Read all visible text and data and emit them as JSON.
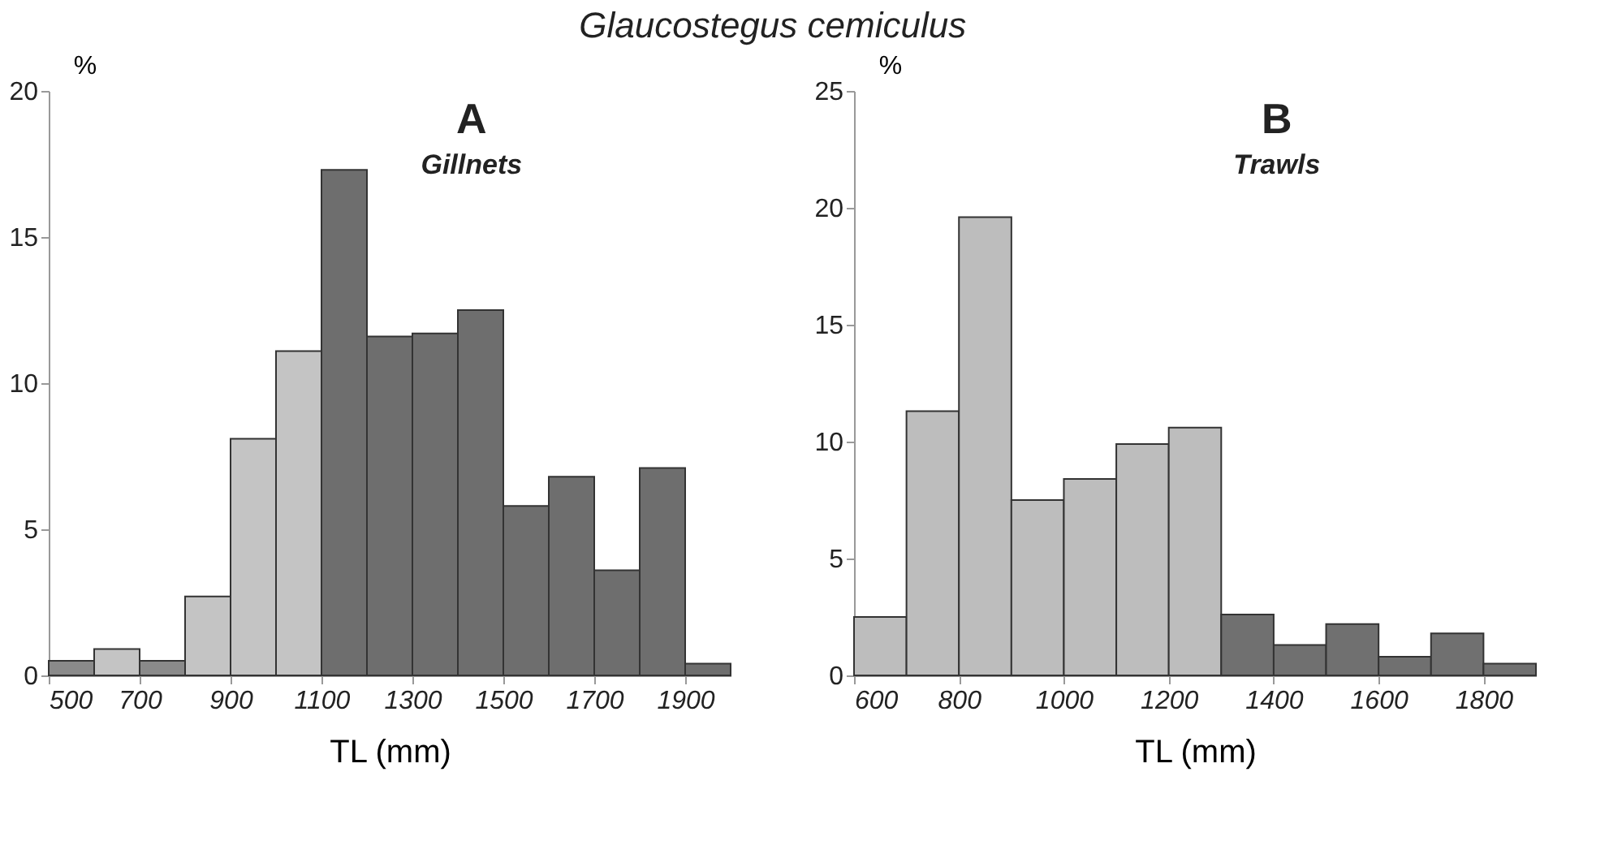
{
  "chart_data": [
    {
      "type": "histogram",
      "title": "A",
      "subtitle": "Gillnets",
      "annotations": [
        "Glaucostegus cemiculus"
      ],
      "xlabel": "TL (mm)",
      "ylabel": "%",
      "bins": [
        500,
        600,
        700,
        800,
        900,
        1000,
        1100,
        1200,
        1300,
        1400,
        1500,
        1600,
        1700,
        1800,
        1900,
        2000
      ],
      "values": [
        0.5,
        0.9,
        0.5,
        2.7,
        8.1,
        11.1,
        17.3,
        11.6,
        11.7,
        12.5,
        5.8,
        6.8,
        3.6,
        7.1,
        0.4
      ],
      "colors": [
        "#8a8a8a",
        "#c4c4c4",
        "#8a8a8a",
        "#c4c4c4",
        "#c4c4c4",
        "#c4c4c4",
        "#6e6e6e",
        "#6e6e6e",
        "#6e6e6e",
        "#6e6e6e",
        "#6e6e6e",
        "#6e6e6e",
        "#6e6e6e",
        "#6e6e6e",
        "#6e6e6e"
      ],
      "xlim": [
        500,
        2000
      ],
      "xticks": [
        500,
        700,
        900,
        1100,
        1300,
        1500,
        1700,
        1900
      ],
      "ylim": [
        0,
        20
      ],
      "yticks": [
        0,
        5,
        10,
        15,
        20
      ],
      "grid": false
    },
    {
      "type": "histogram",
      "title": "B",
      "subtitle": "Trawls",
      "xlabel": "TL (mm)",
      "ylabel": "%",
      "bins": [
        600,
        700,
        800,
        900,
        1000,
        1100,
        1200,
        1300,
        1400,
        1500,
        1600,
        1700,
        1800,
        1900
      ],
      "values": [
        2.5,
        11.3,
        19.6,
        7.5,
        8.4,
        9.9,
        10.6,
        2.6,
        1.3,
        2.2,
        0.8,
        1.8,
        0.5
      ],
      "colors": [
        "#bdbdbd",
        "#bdbdbd",
        "#bdbdbd",
        "#bdbdbd",
        "#bdbdbd",
        "#bdbdbd",
        "#bdbdbd",
        "#707070",
        "#707070",
        "#707070",
        "#707070",
        "#707070",
        "#707070"
      ],
      "xlim": [
        600,
        1900
      ],
      "xticks": [
        600,
        800,
        1000,
        1200,
        1400,
        1600,
        1800
      ],
      "ylim": [
        0,
        25
      ],
      "yticks": [
        0,
        5,
        10,
        15,
        20,
        25
      ],
      "grid": false
    }
  ]
}
